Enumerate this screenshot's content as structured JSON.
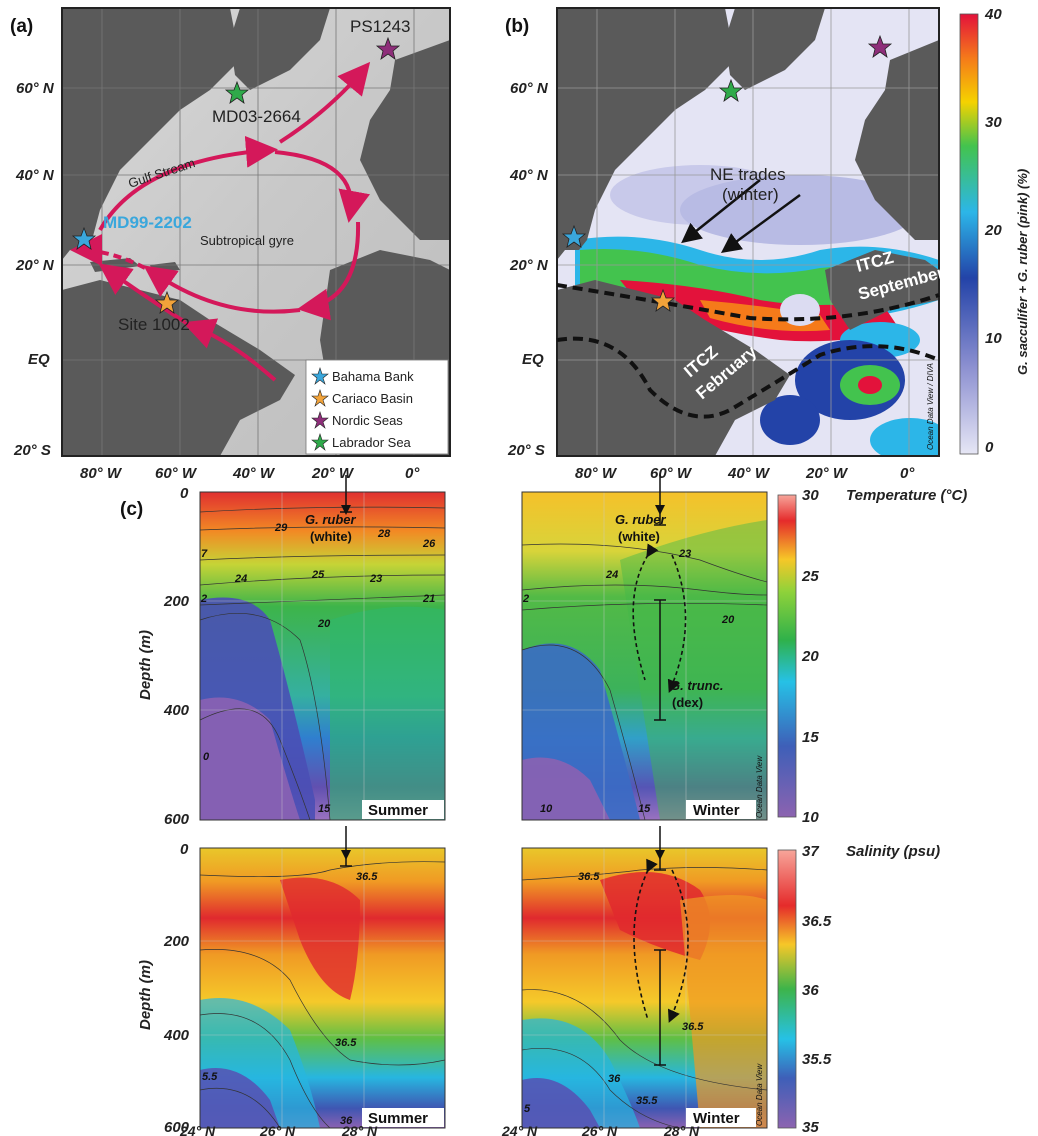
{
  "panels": {
    "a": "(a)",
    "b": "(b)",
    "c": "(c)"
  },
  "map_axes": {
    "lat_ticks": [
      "60° N",
      "40° N",
      "20° N",
      "EQ",
      "20° S"
    ],
    "lon_ticks": [
      "80° W",
      "60° W",
      "40° W",
      "20° W",
      "0°"
    ]
  },
  "map_a": {
    "sites": {
      "ps1243": "PS1243",
      "md03": "MD03-2664",
      "md99": "MD99-2202",
      "site1002": "Site 1002"
    },
    "labels": {
      "gulf_stream": "Gulf  Stream",
      "gyre": "Subtropical gyre"
    },
    "legend": [
      {
        "label": "Bahama Bank",
        "color": "#3aa7dc"
      },
      {
        "label": "Cariaco Basin",
        "color": "#f2a33a"
      },
      {
        "label": "Nordic Seas",
        "color": "#8e2e7a"
      },
      {
        "label": "Labrador Sea",
        "color": "#2faa4a"
      }
    ]
  },
  "map_b": {
    "labels": {
      "trades1": "NE trades",
      "trades2": "(winter)",
      "itcz_sep1": "ITCZ",
      "itcz_sep2": "September",
      "itcz_feb1": "ITCZ",
      "itcz_feb2": "February",
      "credit": "Ocean Data View / DIVA"
    },
    "colorbar": {
      "title": "G. sacculifer + G. ruber (pink) (%)",
      "ticks": [
        "40",
        "30",
        "20",
        "10",
        "0"
      ]
    }
  },
  "sections": {
    "depth_label": "Depth (m)",
    "depth_ticks": [
      "0",
      "200",
      "400",
      "600"
    ],
    "lat_ticks": [
      "24° N",
      "26° N",
      "28° N"
    ],
    "summer": "Summer",
    "winter": "Winter",
    "odv": "Ocean Data View",
    "temp": {
      "title": "Temperature (°C)",
      "ticks": [
        "30",
        "25",
        "20",
        "15",
        "10"
      ],
      "summer_contours": [
        "29",
        "28",
        "26",
        "7",
        "25",
        "24",
        "23",
        "2",
        "21",
        "20",
        "0",
        "15"
      ],
      "winter_contours": [
        "23",
        "24",
        "2",
        "20",
        "10",
        "15"
      ],
      "g_ruber1": "G. ruber",
      "g_ruber2": "(white)",
      "g_trunc1": "G. trunc.",
      "g_trunc2": "(dex)"
    },
    "sal": {
      "title": "Salinity (psu)",
      "ticks": [
        "37",
        "36.5",
        "36",
        "35.5",
        "35"
      ],
      "summer_contours": [
        "36.5",
        "36.5",
        "5.5",
        "36"
      ],
      "winter_contours": [
        "36.5",
        "36.5",
        "36",
        "35.5",
        "5"
      ]
    }
  }
}
